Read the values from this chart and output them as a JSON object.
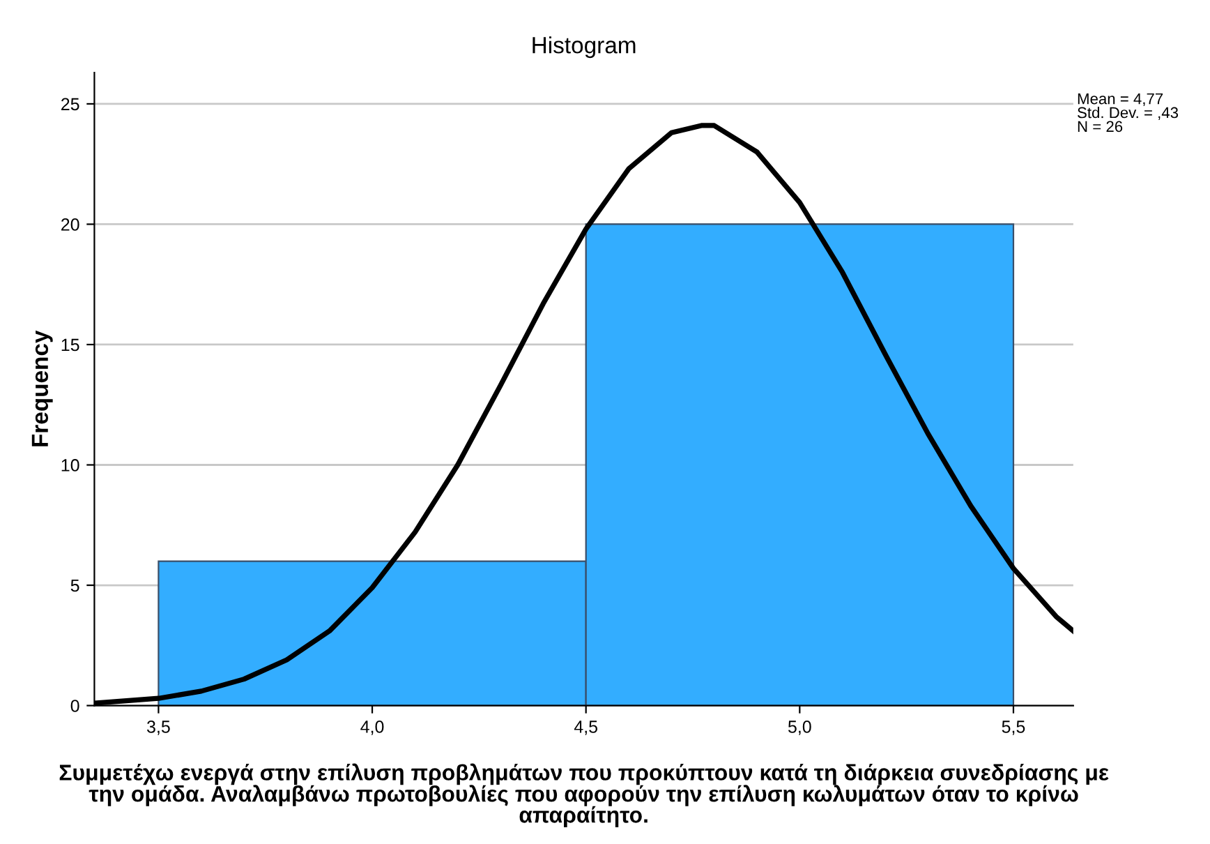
{
  "chart_data": {
    "type": "histogram",
    "title": "Histogram",
    "ylabel": "Frequency",
    "xlabel": "Συμμετέχω ενεργά στην επίλυση προβλημάτων που προκύπτουν κατά τη διάρκεια συνεδρίασης με την ομάδα. Αναλαμβάνω πρωτοβουλίες που αφορούν την επίλυση κωλυμάτων όταν το κρίνω απαραίτητο.",
    "bins": [
      3.5,
      4.5,
      5.5
    ],
    "values": [
      6,
      20
    ],
    "color": "#33adff",
    "series": [
      {
        "type": "line",
        "color": "#000000",
        "x": [
          3.35,
          3.5,
          3.6,
          3.7,
          3.8,
          3.9,
          4.0,
          4.1,
          4.2,
          4.3,
          4.4,
          4.5,
          4.6,
          4.7,
          4.77,
          4.8,
          4.9,
          5.0,
          5.1,
          5.2,
          5.3,
          5.4,
          5.5,
          5.6,
          5.64
        ],
        "values": [
          0.1,
          0.3,
          0.6,
          1.1,
          1.9,
          3.1,
          4.9,
          7.2,
          10.0,
          13.3,
          16.7,
          19.8,
          22.3,
          23.8,
          24.1,
          24.1,
          23.0,
          20.9,
          18.0,
          14.6,
          11.3,
          8.3,
          5.7,
          3.7,
          3.1
        ]
      }
    ],
    "xlim": [
      3.35,
      5.64
    ],
    "ylim": [
      0,
      26.3
    ],
    "xticks": [
      {
        "value": 3.5,
        "label": "3,5"
      },
      {
        "value": 4.0,
        "label": "4,0"
      },
      {
        "value": 4.5,
        "label": "4,5"
      },
      {
        "value": 5.0,
        "label": "5,0"
      },
      {
        "value": 5.5,
        "label": "5,5"
      }
    ],
    "yticks": [
      0,
      5,
      10,
      15,
      20,
      25
    ],
    "grid": "y",
    "annotations": [
      "Mean = 4,77\nStd. Dev. = ,43\nN = 26"
    ]
  }
}
